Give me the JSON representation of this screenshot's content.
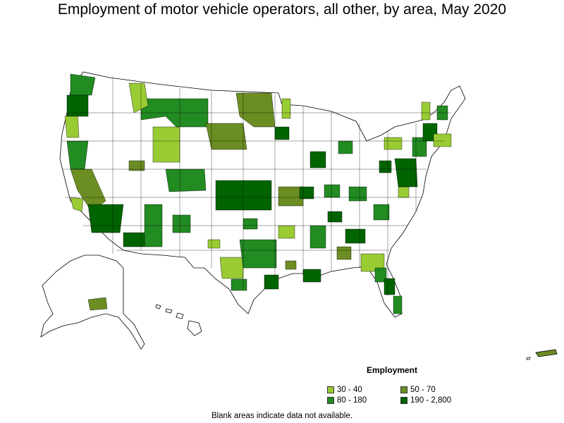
{
  "title": "Employment of motor vehicle operators, all other, by area, May 2020",
  "legend": {
    "title": "Employment",
    "items": [
      {
        "label": "30 - 40",
        "color": "#99cc33"
      },
      {
        "label": "50 - 70",
        "color": "#6b8e23"
      },
      {
        "label": "80 - 180",
        "color": "#228b22"
      },
      {
        "label": "190 - 2,800",
        "color": "#006400"
      }
    ]
  },
  "footnote": "Blank areas indicate data not available."
}
